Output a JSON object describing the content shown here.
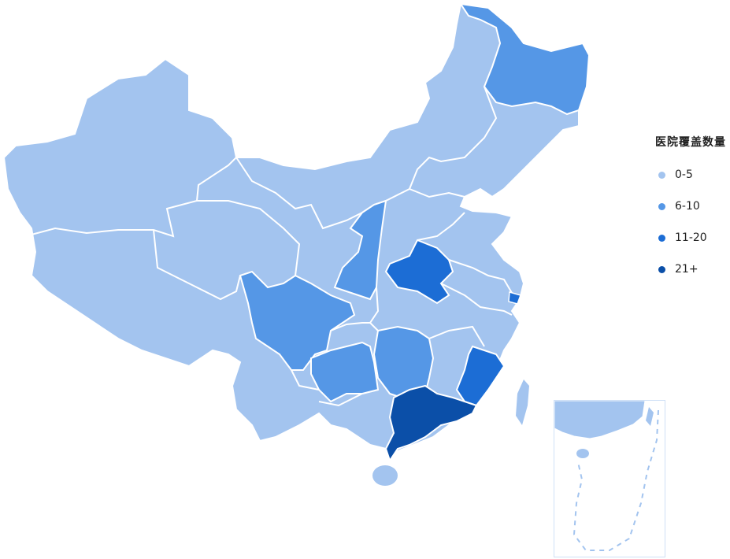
{
  "legend": {
    "title": "医院覆盖数量",
    "items": [
      {
        "label": "0-5",
        "color": "#a3c4ef"
      },
      {
        "label": "6-10",
        "color": "#5597e6"
      },
      {
        "label": "11-20",
        "color": "#1c6dd5"
      },
      {
        "label": "21+",
        "color": "#0b4fa8"
      }
    ]
  },
  "map": {
    "base_color": "#a3c4ef",
    "border_color": "#ffffff",
    "highlighted_regions": [
      {
        "id": "heilongjiang",
        "level": "6-10"
      },
      {
        "id": "shaanxi",
        "level": "6-10"
      },
      {
        "id": "sichuan",
        "level": "6-10"
      },
      {
        "id": "guizhou",
        "level": "6-10"
      },
      {
        "id": "hunan",
        "level": "6-10"
      },
      {
        "id": "henan",
        "level": "11-20"
      },
      {
        "id": "fujian",
        "level": "11-20"
      },
      {
        "id": "shanghai",
        "level": "11-20"
      },
      {
        "id": "guangdong",
        "level": "21+"
      }
    ]
  }
}
